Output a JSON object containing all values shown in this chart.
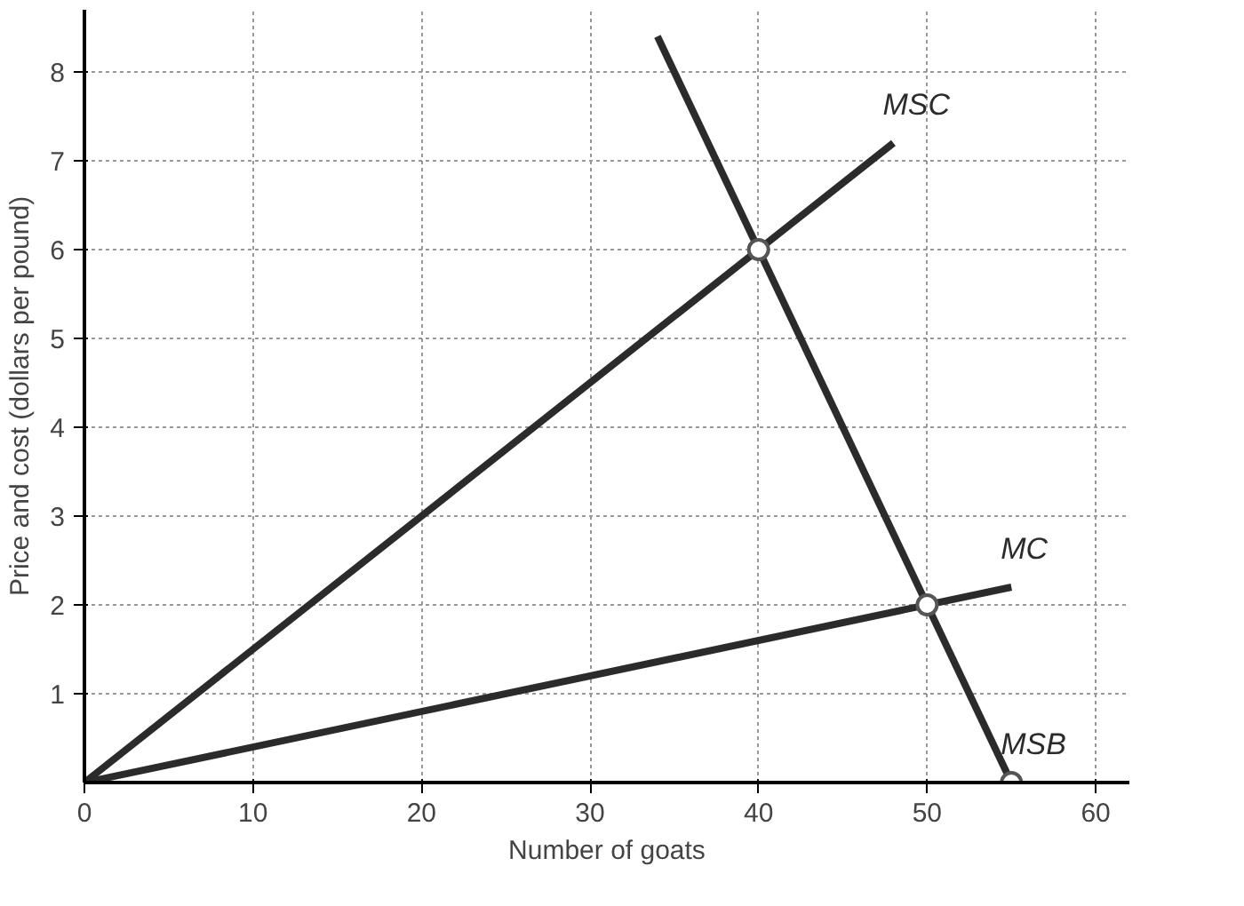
{
  "chart_data": {
    "type": "line",
    "xlabel": "Number of goats",
    "ylabel": "Price and cost (dollars per pound)",
    "xlim": [
      0,
      62
    ],
    "ylim": [
      0,
      8.7
    ],
    "xticks": [
      0,
      10,
      20,
      30,
      40,
      50,
      60
    ],
    "yticks": [
      1,
      2,
      3,
      4,
      5,
      6,
      7,
      8
    ],
    "grid": true,
    "series": [
      {
        "name": "MSC",
        "color": "#2b2b2b",
        "x": [
          0,
          48
        ],
        "values": [
          0,
          7.2
        ]
      },
      {
        "name": "MC",
        "color": "#2b2b2b",
        "x": [
          0,
          55
        ],
        "values": [
          0,
          2.2
        ]
      },
      {
        "name": "MSB",
        "color": "#2b2b2b",
        "x": [
          34,
          55
        ],
        "values": [
          8.4,
          0
        ]
      },
      {
        "type": "scatter",
        "marker": "circle",
        "color": "#555555",
        "x": [
          40,
          50,
          55
        ],
        "values": [
          6,
          2,
          0
        ]
      }
    ]
  }
}
